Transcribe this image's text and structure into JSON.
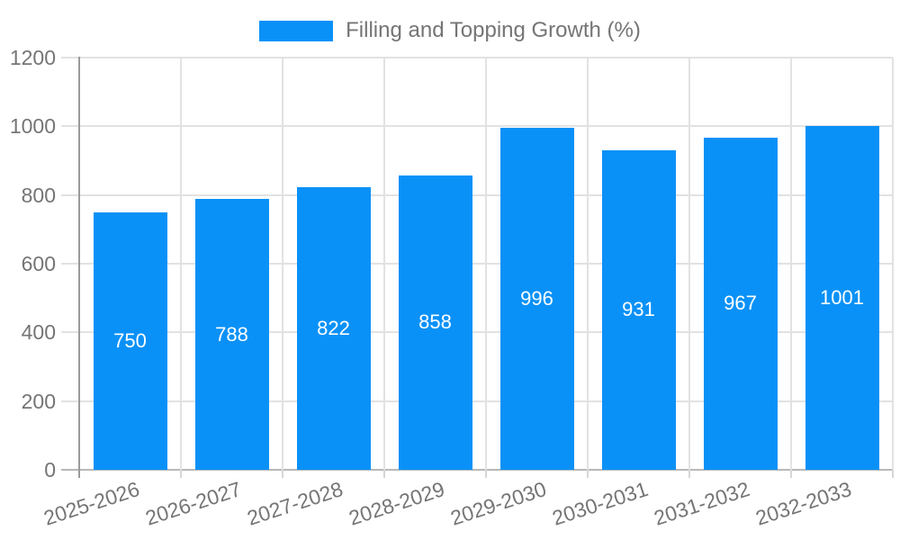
{
  "legend": {
    "label": "Filling and Topping Growth (%)",
    "swatch_color": "#0a91f7",
    "position": "top"
  },
  "chart_data": {
    "type": "bar",
    "title": "Filling and Topping Growth (%)",
    "categories": [
      "2025-2026",
      "2026-2027",
      "2027-2028",
      "2028-2029",
      "2029-2030",
      "2030-2031",
      "2031-2032",
      "2032-2033"
    ],
    "values": [
      750,
      788,
      822,
      858,
      996,
      931,
      967,
      1001
    ],
    "value_labels": [
      "750",
      "788",
      "822",
      "858",
      "996",
      "931",
      "967",
      "1001"
    ],
    "series_name": "Filling and Topping Growth (%)",
    "xlabel": "",
    "ylabel": "",
    "ylim": [
      0,
      1200
    ],
    "yticks": [
      0,
      200,
      400,
      600,
      800,
      1000,
      1200
    ],
    "grid": true,
    "legend_position": "top",
    "colors": {
      "bar": "#0a91f7",
      "value_label": "#ffffff",
      "axis_text": "#757575",
      "gridline": "#e2e2e2",
      "y_axis_line": "#9a9a9a",
      "x_axis_line": "#b8b8b8"
    }
  }
}
